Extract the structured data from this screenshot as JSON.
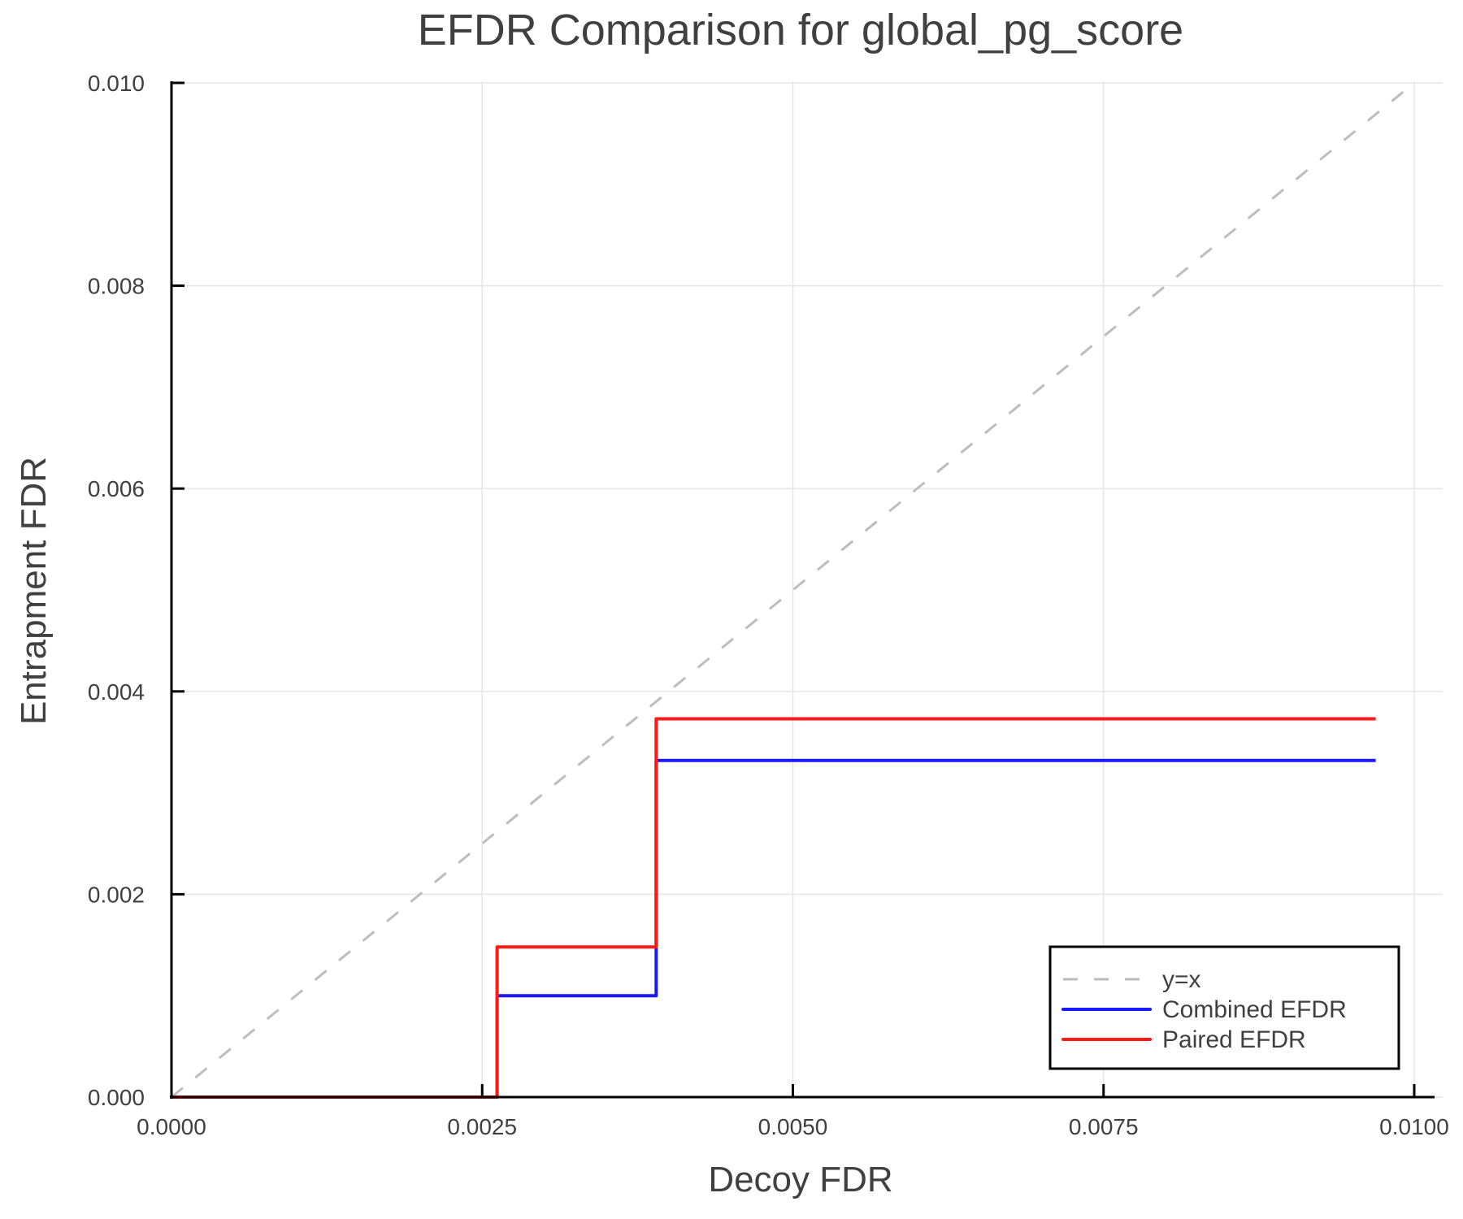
{
  "chart_data": {
    "type": "line",
    "title": "EFDR Comparison for global_pg_score",
    "xlabel": "Decoy FDR",
    "ylabel": "Entrapment FDR",
    "xlim": [
      0,
      0.01
    ],
    "ylim": [
      0,
      0.01
    ],
    "xticks": [
      "0.0000",
      "0.0025",
      "0.0050",
      "0.0075",
      "0.0100"
    ],
    "xtick_values": [
      0,
      0.0025,
      0.005,
      0.0075,
      0.01
    ],
    "yticks": [
      "0.000",
      "0.002",
      "0.004",
      "0.006",
      "0.008",
      "0.010"
    ],
    "ytick_values": [
      0,
      0.002,
      0.004,
      0.006,
      0.008,
      0.01
    ],
    "grid": true,
    "legend_position": "bottom-right",
    "series": [
      {
        "name": "y=x",
        "style": "dashed",
        "color": "#bdbdbd",
        "x": [
          0,
          0.01
        ],
        "y": [
          0,
          0.01
        ]
      },
      {
        "name": "Combined EFDR",
        "style": "step",
        "color": "#1a1aff",
        "x": [
          0,
          0.00262,
          0.00262,
          0.0039,
          0.0039,
          0.00969
        ],
        "y": [
          0,
          0,
          0.001,
          0.001,
          0.00332,
          0.00332
        ]
      },
      {
        "name": "Paired EFDR",
        "style": "step",
        "color": "#ff1a1a",
        "x": [
          0,
          0.00262,
          0.00262,
          0.0039,
          0.0039,
          0.00969
        ],
        "y": [
          0,
          0,
          0.00148,
          0.00148,
          0.00373,
          0.00373
        ]
      }
    ]
  },
  "legend": {
    "items": [
      {
        "label": "y=x"
      },
      {
        "label": "Combined EFDR"
      },
      {
        "label": "Paired EFDR"
      }
    ]
  }
}
